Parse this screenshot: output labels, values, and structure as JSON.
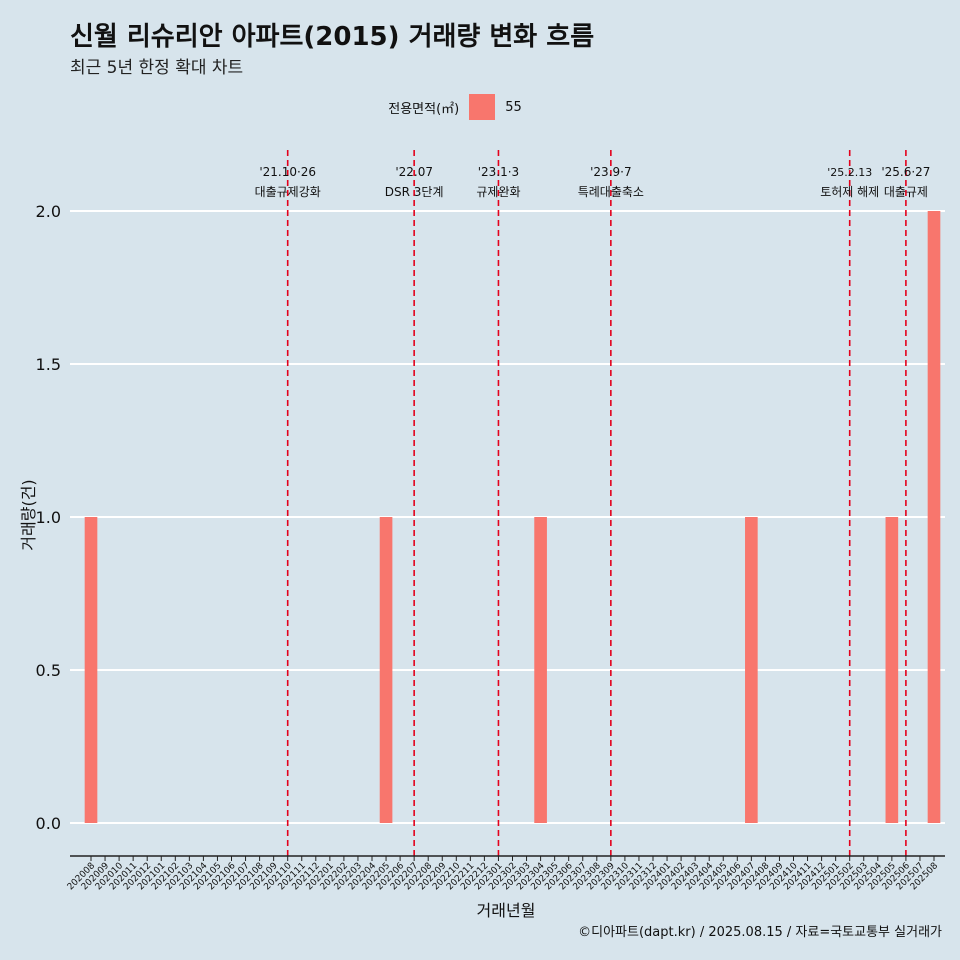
{
  "title": "신월 리슈리안 아파트(2015) 거래량 변화 흐름",
  "subtitle": "최근 5년 한정 확대 차트",
  "legend": {
    "title": "전용면적(㎡)",
    "items": [
      {
        "label": "55",
        "color": "#f8766d"
      }
    ]
  },
  "caption": "©디아파트(dapt.kr) / 2025.08.15 / 자료=국토교통부 실거래가",
  "chart_data": {
    "type": "bar",
    "xlabel": "거래년월",
    "ylabel": "거래량(건)",
    "ylim": [
      0,
      2.0
    ],
    "yticks": [
      "0.0",
      "0.5",
      "1.0",
      "1.5",
      "2.0"
    ],
    "categories": [
      "202008",
      "202009",
      "202010",
      "202011",
      "202012",
      "202101",
      "202102",
      "202103",
      "202104",
      "202105",
      "202106",
      "202107",
      "202108",
      "202109",
      "202110",
      "202111",
      "202112",
      "202201",
      "202202",
      "202203",
      "202204",
      "202205",
      "202206",
      "202207",
      "202208",
      "202209",
      "202210",
      "202211",
      "202212",
      "202301",
      "202302",
      "202303",
      "202304",
      "202305",
      "202306",
      "202307",
      "202308",
      "202309",
      "202310",
      "202311",
      "202312",
      "202401",
      "202402",
      "202403",
      "202404",
      "202405",
      "202406",
      "202407",
      "202408",
      "202409",
      "202410",
      "202411",
      "202412",
      "202501",
      "202502",
      "202503",
      "202504",
      "202505",
      "202506",
      "202507",
      "202508"
    ],
    "series": [
      {
        "name": "55",
        "color": "#f8766d",
        "points": [
          {
            "x": "202008",
            "y": 1
          },
          {
            "x": "202205",
            "y": 1
          },
          {
            "x": "202304",
            "y": 1
          },
          {
            "x": "202407",
            "y": 1
          },
          {
            "x": "202505",
            "y": 1
          },
          {
            "x": "202508",
            "y": 2
          }
        ]
      }
    ],
    "events": [
      {
        "x": "202110",
        "date": "'21.10·26",
        "label": "대출규제강화"
      },
      {
        "x": "202207",
        "date": "'22.07",
        "label": "DSR 3단계"
      },
      {
        "x": "202301",
        "date": "'23.1·3",
        "label": "규제완화"
      },
      {
        "x": "202309",
        "date": "'23.9·7",
        "label": "특례대출축소"
      },
      {
        "x": "202502",
        "date": "'25.2.13",
        "label": "토허제 해제"
      },
      {
        "x": "202506",
        "date": "'25.6·27",
        "label": "대출규제"
      }
    ],
    "event_line_color": "#e3001b",
    "grid": true,
    "legend_position": "top"
  }
}
